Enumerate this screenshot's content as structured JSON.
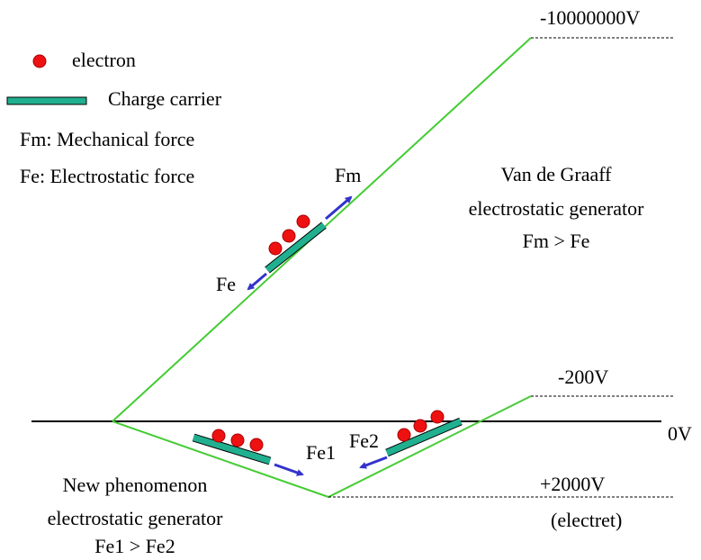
{
  "legend": {
    "electron": "electron",
    "carrier": "Charge carrier",
    "fm": "Fm: Mechanical force",
    "fe": "Fe: Electrostatic force"
  },
  "levels": {
    "top": "-10000000V",
    "minus200": "-200V",
    "zero": "0V",
    "plus2000": "+2000V",
    "electret": "(electret)"
  },
  "van_de_graaff": {
    "line1": "Van de Graaff",
    "line2": "electrostatic generator",
    "line3": "Fm > Fe",
    "fm": "Fm",
    "fe": "Fe"
  },
  "new_phenomenon": {
    "line1": "New phenomenon",
    "line2": "electrostatic generator",
    "line3": "Fe1 > Fe2",
    "fe1": "Fe1",
    "fe2": "Fe2"
  }
}
